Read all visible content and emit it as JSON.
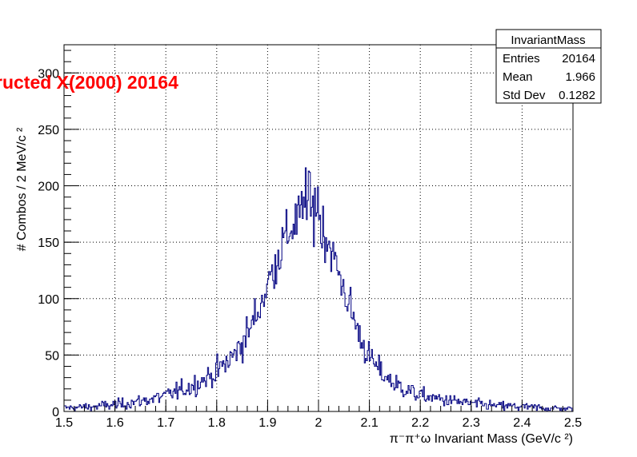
{
  "chart_data": {
    "type": "histogram",
    "title": "ructed X(2000) 20164",
    "xlabel": "π⁻π⁺ω Invariant Mass (GeV/c  ²)",
    "ylabel": "# Combos / 2 MeV/c  ²",
    "xlim": [
      1.5,
      2.5
    ],
    "ylim": [
      0,
      325
    ],
    "bin_width": 0.002,
    "x_ticks": [
      "1.5",
      "1.6",
      "1.7",
      "1.8",
      "1.9",
      "2",
      "2.1",
      "2.2",
      "2.3",
      "2.4",
      "2.5"
    ],
    "y_ticks": [
      "0",
      "50",
      "100",
      "150",
      "200",
      "250",
      "300"
    ],
    "grid": true,
    "line_color": "#000080",
    "title_color": "#ff0000",
    "series": [
      {
        "name": "InvariantMass",
        "profile_centers": [
          1.5,
          1.55,
          1.6,
          1.65,
          1.7,
          1.75,
          1.8,
          1.83,
          1.86,
          1.88,
          1.9,
          1.92,
          1.94,
          1.96,
          1.98,
          2.0,
          2.02,
          2.04,
          2.06,
          2.08,
          2.1,
          2.12,
          2.15,
          2.2,
          2.25,
          2.3,
          2.35,
          2.4,
          2.45,
          2.5
        ],
        "profile_values": [
          3,
          4,
          6,
          9,
          14,
          22,
          35,
          48,
          68,
          88,
          112,
          138,
          158,
          172,
          178,
          170,
          150,
          122,
          95,
          68,
          48,
          36,
          24,
          14,
          10,
          7,
          5,
          4,
          3,
          2
        ],
        "peak_bins": [
          {
            "x": 1.975,
            "y": 216
          },
          {
            "x": 1.981,
            "y": 213
          },
          {
            "x": 1.999,
            "y": 199
          },
          {
            "x": 1.993,
            "y": 198
          }
        ]
      }
    ]
  },
  "stats_box": {
    "title": "InvariantMass",
    "rows": [
      {
        "label": "Entries",
        "value": "20164"
      },
      {
        "label": "Mean",
        "value": "1.966"
      },
      {
        "label": "Std Dev",
        "value": "0.1282"
      }
    ]
  }
}
